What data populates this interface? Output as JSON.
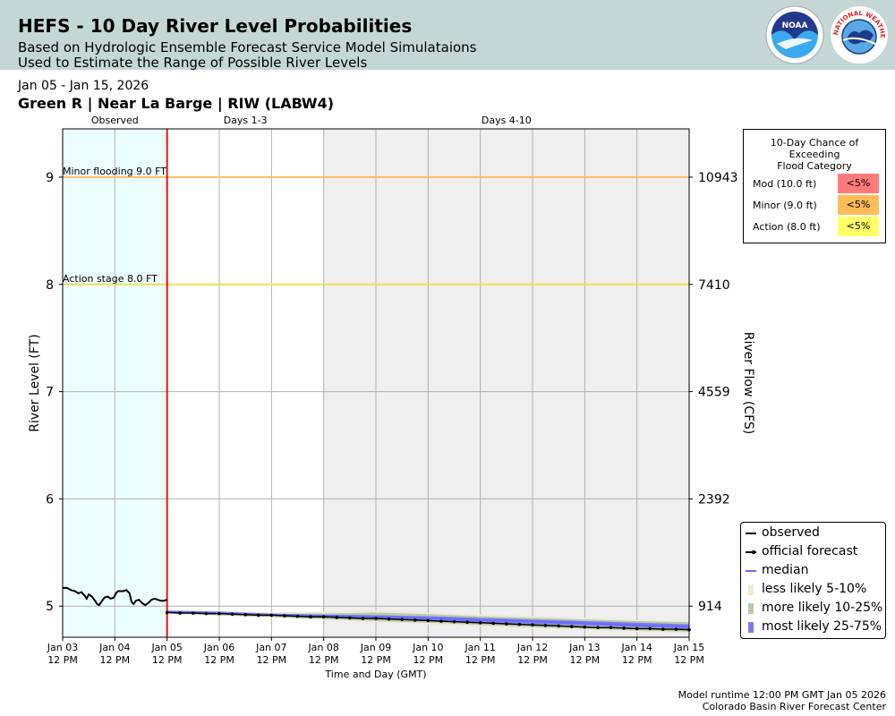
{
  "header": {
    "title": "HEFS - 10 Day River Level Probabilities",
    "subtitle_line1": "Based on Hydrologic Ensemble Forecast Service Model Simulataions",
    "subtitle_line2": "Used to Estimate the Range of Possible River Levels",
    "noaa_logo_text": "NOAA",
    "nws_logo_text": "NATIONAL WEATHER SERVICE"
  },
  "date_range": "Jan 05 - Jan 15, 2026",
  "station": "Green R | Near La Barge | RIW (LABW4)",
  "probability_table": {
    "title_line1": "10-Day Chance of",
    "title_line2": "Exceeding",
    "title_line3": "Flood Category",
    "rows": [
      {
        "label": "Mod (10.0 ft)",
        "value": "<5%",
        "color": "#ff7b7b"
      },
      {
        "label": "Minor (9.0 ft)",
        "value": "<5%",
        "color": "#ffbb55"
      },
      {
        "label": "Action (8.0 ft)",
        "value": "<5%",
        "color": "#ffff66"
      }
    ]
  },
  "legend": [
    {
      "label": "observed",
      "symbol": "line",
      "color": "#000000"
    },
    {
      "label": "official forecast",
      "symbol": "line-dot",
      "color": "#000000"
    },
    {
      "label": "median",
      "symbol": "line",
      "color": "#6a6aff"
    },
    {
      "label": "less likely 5-10%",
      "symbol": "patch",
      "color": "#efe9d7"
    },
    {
      "label": "more likely 10-25%",
      "symbol": "patch",
      "color": "#b5cbaa"
    },
    {
      "label": "most likely 25-75%",
      "symbol": "patch",
      "color": "#7b7bf0"
    }
  ],
  "footer": {
    "line1": "Model runtime 12:00 PM GMT Jan 05 2026",
    "line2": "Colorado Basin River Forecast Center"
  },
  "chart_data": {
    "type": "line",
    "title": "",
    "xlabel": "Time and Day (GMT)",
    "ylabel": "River Level (FT)",
    "y2label": "River Flow (CFS)",
    "xlim": [
      0,
      12
    ],
    "ylim": [
      4.71,
      9.45
    ],
    "x_ticks": [
      {
        "day": "Jan 03",
        "time": "12 PM"
      },
      {
        "day": "Jan 04",
        "time": "12 PM"
      },
      {
        "day": "Jan 05",
        "time": "12 PM"
      },
      {
        "day": "Jan 06",
        "time": "12 PM"
      },
      {
        "day": "Jan 07",
        "time": "12 PM"
      },
      {
        "day": "Jan 08",
        "time": "12 PM"
      },
      {
        "day": "Jan 09",
        "time": "12 PM"
      },
      {
        "day": "Jan 10",
        "time": "12 PM"
      },
      {
        "day": "Jan 11",
        "time": "12 PM"
      },
      {
        "day": "Jan 12",
        "time": "12 PM"
      },
      {
        "day": "Jan 13",
        "time": "12 PM"
      },
      {
        "day": "Jan 14",
        "time": "12 PM"
      },
      {
        "day": "Jan 15",
        "time": "12 PM"
      }
    ],
    "y_ticks": [
      "5",
      "6",
      "7",
      "8",
      "9"
    ],
    "y_tick_values": [
      5,
      6,
      7,
      8,
      9
    ],
    "y2_ticks": [
      {
        "stage": 5,
        "label": "914"
      },
      {
        "stage": 6,
        "label": "2392"
      },
      {
        "stage": 7,
        "label": "4559"
      },
      {
        "stage": 8,
        "label": "7410"
      },
      {
        "stage": 9,
        "label": "10943"
      }
    ],
    "regions": [
      {
        "label": "Observed",
        "from": 0,
        "to": 2,
        "color": "#ebfefe"
      },
      {
        "label": "Days 1-3",
        "from": 2,
        "to": 5,
        "color": "#ffffff"
      },
      {
        "label": "Days 4-10",
        "from": 5,
        "to": 12,
        "color": "#efefef"
      }
    ],
    "forecast_start_x": 2,
    "thresholds": [
      {
        "label": "Minor flooding 9.0 FT",
        "value": 9.0,
        "color": "#ffbb66"
      },
      {
        "label": "Action stage 8.0 FT",
        "value": 8.0,
        "color": "#f4e04d"
      }
    ],
    "observed": {
      "x": [
        0,
        0.08,
        0.16,
        0.24,
        0.3,
        0.36,
        0.42,
        0.46,
        0.5,
        0.56,
        0.62,
        0.66,
        0.7,
        0.74,
        0.8,
        0.86,
        0.92,
        0.98,
        1.02,
        1.06,
        1.1,
        1.16,
        1.22,
        1.28,
        1.32,
        1.36,
        1.4,
        1.46,
        1.52,
        1.58,
        1.64,
        1.7,
        1.76,
        1.82,
        1.88,
        1.94,
        2.0
      ],
      "y": [
        5.17,
        5.17,
        5.15,
        5.14,
        5.12,
        5.13,
        5.1,
        5.07,
        5.11,
        5.09,
        5.05,
        5.02,
        5.01,
        5.04,
        5.08,
        5.09,
        5.07,
        5.08,
        5.12,
        5.14,
        5.14,
        5.14,
        5.15,
        5.12,
        5.04,
        5.02,
        5.05,
        5.06,
        5.03,
        5.01,
        5.03,
        5.06,
        5.07,
        5.06,
        5.05,
        5.05,
        5.06
      ]
    },
    "official_forecast": {
      "x": [
        2,
        2.25,
        2.5,
        2.75,
        3,
        3.25,
        3.5,
        3.75,
        4,
        4.25,
        4.5,
        4.75,
        5,
        5.25,
        5.5,
        5.75,
        6,
        6.25,
        6.5,
        6.75,
        7,
        7.25,
        7.5,
        7.75,
        8,
        8.25,
        8.5,
        8.75,
        9,
        9.25,
        9.5,
        9.75,
        10,
        10.25,
        10.5,
        10.75,
        11,
        11.25,
        11.5,
        11.75,
        12
      ],
      "y": [
        4.94,
        4.935,
        4.935,
        4.93,
        4.93,
        4.925,
        4.92,
        4.915,
        4.915,
        4.91,
        4.905,
        4.9,
        4.9,
        4.895,
        4.89,
        4.885,
        4.885,
        4.88,
        4.875,
        4.87,
        4.865,
        4.86,
        4.855,
        4.85,
        4.845,
        4.84,
        4.835,
        4.83,
        4.825,
        4.82,
        4.815,
        4.81,
        4.805,
        4.8,
        4.8,
        4.795,
        4.79,
        4.79,
        4.785,
        4.785,
        4.78
      ]
    },
    "median": {
      "x": [
        2,
        3,
        4,
        5,
        6,
        7,
        8,
        9,
        10,
        11,
        12
      ],
      "y": [
        4.95,
        4.94,
        4.92,
        4.91,
        4.9,
        4.89,
        4.87,
        4.86,
        4.84,
        4.82,
        4.81
      ]
    },
    "bands": [
      {
        "name": "less likely 5-10%",
        "color": "#efe9d7",
        "x": [
          2,
          3,
          4,
          5,
          6,
          7,
          8,
          9,
          10,
          11,
          12
        ],
        "low": [
          4.93,
          4.91,
          4.89,
          4.87,
          4.85,
          4.83,
          4.81,
          4.79,
          4.78,
          4.76,
          4.75
        ],
        "high": [
          4.96,
          4.95,
          4.94,
          4.95,
          4.96,
          4.94,
          4.92,
          4.91,
          4.89,
          4.87,
          4.86
        ]
      },
      {
        "name": "more likely 10-25%",
        "color": "#b5cbaa",
        "x": [
          2,
          3,
          4,
          5,
          6,
          7,
          8,
          9,
          10,
          11,
          12
        ],
        "low": [
          4.935,
          4.915,
          4.9,
          4.88,
          4.86,
          4.845,
          4.825,
          4.805,
          4.79,
          4.775,
          4.76
        ],
        "high": [
          4.955,
          4.945,
          4.93,
          4.93,
          4.94,
          4.925,
          4.905,
          4.89,
          4.875,
          4.86,
          4.85
        ]
      },
      {
        "name": "most likely 25-75%",
        "color": "#7b7bf0",
        "x": [
          2,
          3,
          4,
          5,
          6,
          7,
          8,
          9,
          10,
          11,
          12
        ],
        "low": [
          4.94,
          4.925,
          4.91,
          4.895,
          4.88,
          4.87,
          4.85,
          4.835,
          4.82,
          4.805,
          4.79
        ],
        "high": [
          4.955,
          4.945,
          4.93,
          4.92,
          4.915,
          4.905,
          4.89,
          4.875,
          4.86,
          4.845,
          4.83
        ]
      }
    ]
  }
}
